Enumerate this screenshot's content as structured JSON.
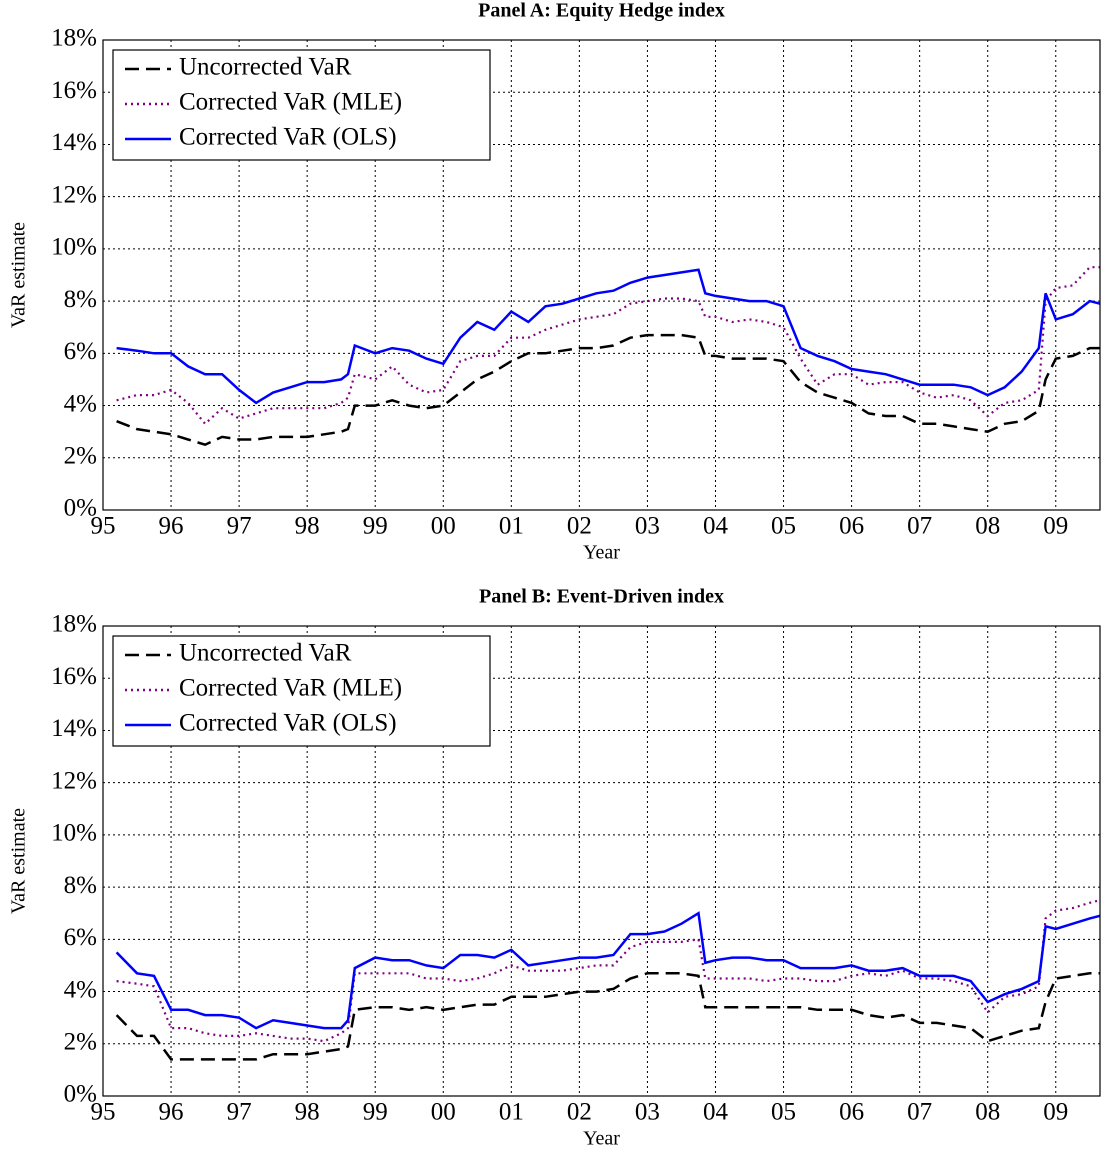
{
  "chart_data": [
    {
      "type": "line",
      "title": "Panel A: Equity Hedge index",
      "xlabel": "Year",
      "ylabel": "VaR estimate",
      "x": [
        1995.2,
        1995.5,
        1995.75,
        1996.0,
        1996.25,
        1996.5,
        1996.75,
        1997.0,
        1997.25,
        1997.5,
        1997.75,
        1998.0,
        1998.25,
        1998.5,
        1998.6,
        1998.7,
        1999.0,
        1999.25,
        1999.5,
        1999.75,
        2000.0,
        2000.25,
        2000.5,
        2000.75,
        2001.0,
        2001.25,
        2001.5,
        2001.75,
        2002.0,
        2002.25,
        2002.5,
        2002.75,
        2003.0,
        2003.25,
        2003.5,
        2003.75,
        2003.85,
        2004.0,
        2004.25,
        2004.5,
        2004.75,
        2005.0,
        2005.25,
        2005.5,
        2005.75,
        2006.0,
        2006.25,
        2006.5,
        2006.75,
        2007.0,
        2007.25,
        2007.5,
        2007.75,
        2008.0,
        2008.25,
        2008.5,
        2008.75,
        2008.85,
        2009.0,
        2009.25,
        2009.5,
        2009.65
      ],
      "series": [
        {
          "name": "Uncorrected VaR",
          "color": "#000000",
          "linestyle": "dashed",
          "values": [
            3.4,
            3.1,
            3.0,
            2.9,
            2.7,
            2.5,
            2.8,
            2.7,
            2.7,
            2.8,
            2.8,
            2.8,
            2.9,
            3.0,
            3.1,
            4.0,
            4.0,
            4.2,
            4.0,
            3.9,
            4.0,
            4.5,
            5.0,
            5.3,
            5.7,
            6.0,
            6.0,
            6.1,
            6.2,
            6.2,
            6.3,
            6.6,
            6.7,
            6.7,
            6.7,
            6.6,
            5.9,
            5.9,
            5.8,
            5.8,
            5.8,
            5.7,
            4.9,
            4.5,
            4.3,
            4.1,
            3.7,
            3.6,
            3.6,
            3.3,
            3.3,
            3.2,
            3.1,
            3.0,
            3.3,
            3.4,
            3.8,
            5.0,
            5.8,
            5.9,
            6.2,
            6.2
          ]
        },
        {
          "name": "Corrected VaR (MLE)",
          "color": "#800080",
          "linestyle": "dotted",
          "values": [
            4.2,
            4.4,
            4.4,
            4.6,
            4.1,
            3.3,
            3.9,
            3.5,
            3.7,
            3.9,
            3.9,
            3.9,
            3.9,
            4.1,
            4.3,
            5.2,
            5.0,
            5.5,
            4.8,
            4.5,
            4.6,
            5.7,
            5.9,
            5.9,
            6.6,
            6.6,
            6.9,
            7.1,
            7.3,
            7.4,
            7.5,
            7.9,
            8.0,
            8.1,
            8.1,
            8.0,
            7.4,
            7.4,
            7.2,
            7.3,
            7.2,
            7.0,
            5.8,
            4.8,
            5.2,
            5.2,
            4.8,
            4.9,
            4.9,
            4.5,
            4.3,
            4.4,
            4.2,
            3.6,
            4.1,
            4.2,
            4.6,
            8.0,
            8.5,
            8.6,
            9.3,
            9.3
          ]
        },
        {
          "name": "Corrected VaR (OLS)",
          "color": "#0000ff",
          "linestyle": "solid",
          "values": [
            6.2,
            6.1,
            6.0,
            6.0,
            5.5,
            5.2,
            5.2,
            4.6,
            4.1,
            4.5,
            4.7,
            4.9,
            4.9,
            5.0,
            5.2,
            6.3,
            6.0,
            6.2,
            6.1,
            5.8,
            5.6,
            6.6,
            7.2,
            6.9,
            7.6,
            7.2,
            7.8,
            7.9,
            8.1,
            8.3,
            8.4,
            8.7,
            8.9,
            9.0,
            9.1,
            9.2,
            8.3,
            8.2,
            8.1,
            8.0,
            8.0,
            7.8,
            6.2,
            5.9,
            5.7,
            5.4,
            5.3,
            5.2,
            5.0,
            4.8,
            4.8,
            4.8,
            4.7,
            4.4,
            4.7,
            5.3,
            6.2,
            8.3,
            7.3,
            7.5,
            8.0,
            7.9
          ]
        }
      ],
      "xlim": [
        1995,
        2009.65
      ],
      "ylim": [
        0,
        18
      ],
      "xticks": [
        {
          "value": 1995,
          "label": "95"
        },
        {
          "value": 1996,
          "label": "96"
        },
        {
          "value": 1997,
          "label": "97"
        },
        {
          "value": 1998,
          "label": "98"
        },
        {
          "value": 1999,
          "label": "99"
        },
        {
          "value": 2000,
          "label": "00"
        },
        {
          "value": 2001,
          "label": "01"
        },
        {
          "value": 2002,
          "label": "02"
        },
        {
          "value": 2003,
          "label": "03"
        },
        {
          "value": 2004,
          "label": "04"
        },
        {
          "value": 2005,
          "label": "05"
        },
        {
          "value": 2006,
          "label": "06"
        },
        {
          "value": 2007,
          "label": "07"
        },
        {
          "value": 2008,
          "label": "08"
        },
        {
          "value": 2009,
          "label": "09"
        }
      ],
      "yticks": [
        {
          "value": 0,
          "label": "0%"
        },
        {
          "value": 2,
          "label": "2%"
        },
        {
          "value": 4,
          "label": "4%"
        },
        {
          "value": 6,
          "label": "6%"
        },
        {
          "value": 8,
          "label": "8%"
        },
        {
          "value": 10,
          "label": "10%"
        },
        {
          "value": 12,
          "label": "12%"
        },
        {
          "value": 14,
          "label": "14%"
        },
        {
          "value": 16,
          "label": "16%"
        },
        {
          "value": 18,
          "label": "18%"
        }
      ],
      "grid": true,
      "legend": "upper left"
    },
    {
      "type": "line",
      "title": "Panel B: Event-Driven index",
      "xlabel": "Year",
      "ylabel": "VaR estimate",
      "x": [
        1995.2,
        1995.5,
        1995.75,
        1996.0,
        1996.25,
        1996.5,
        1996.75,
        1997.0,
        1997.25,
        1997.5,
        1997.75,
        1998.0,
        1998.25,
        1998.5,
        1998.6,
        1998.7,
        1999.0,
        1999.25,
        1999.5,
        1999.75,
        2000.0,
        2000.25,
        2000.5,
        2000.75,
        2001.0,
        2001.25,
        2001.5,
        2001.75,
        2002.0,
        2002.25,
        2002.5,
        2002.75,
        2003.0,
        2003.25,
        2003.5,
        2003.75,
        2003.85,
        2004.0,
        2004.25,
        2004.5,
        2004.75,
        2005.0,
        2005.25,
        2005.5,
        2005.75,
        2006.0,
        2006.25,
        2006.5,
        2006.75,
        2007.0,
        2007.25,
        2007.5,
        2007.75,
        2008.0,
        2008.25,
        2008.5,
        2008.75,
        2008.85,
        2009.0,
        2009.25,
        2009.5,
        2009.65
      ],
      "series": [
        {
          "name": "Uncorrected VaR",
          "color": "#000000",
          "linestyle": "dashed",
          "values": [
            3.1,
            2.3,
            2.3,
            1.4,
            1.4,
            1.4,
            1.4,
            1.4,
            1.4,
            1.6,
            1.6,
            1.6,
            1.7,
            1.8,
            1.9,
            3.3,
            3.4,
            3.4,
            3.3,
            3.4,
            3.3,
            3.4,
            3.5,
            3.5,
            3.8,
            3.8,
            3.8,
            3.9,
            4.0,
            4.0,
            4.1,
            4.5,
            4.7,
            4.7,
            4.7,
            4.6,
            3.4,
            3.4,
            3.4,
            3.4,
            3.4,
            3.4,
            3.4,
            3.3,
            3.3,
            3.3,
            3.1,
            3.0,
            3.1,
            2.8,
            2.8,
            2.7,
            2.6,
            2.1,
            2.3,
            2.5,
            2.6,
            3.6,
            4.5,
            4.6,
            4.7,
            4.7
          ]
        },
        {
          "name": "Corrected VaR (MLE)",
          "color": "#800080",
          "linestyle": "dotted",
          "values": [
            4.4,
            4.3,
            4.2,
            2.6,
            2.6,
            2.4,
            2.3,
            2.3,
            2.4,
            2.3,
            2.2,
            2.2,
            2.1,
            2.4,
            2.6,
            4.7,
            4.7,
            4.7,
            4.7,
            4.5,
            4.5,
            4.4,
            4.5,
            4.7,
            5.0,
            4.8,
            4.8,
            4.8,
            4.9,
            5.0,
            5.0,
            5.7,
            5.9,
            5.9,
            5.9,
            6.0,
            4.5,
            4.5,
            4.5,
            4.5,
            4.4,
            4.5,
            4.5,
            4.4,
            4.4,
            4.6,
            4.7,
            4.6,
            4.8,
            4.5,
            4.5,
            4.4,
            4.2,
            3.2,
            3.8,
            3.9,
            4.2,
            6.8,
            7.1,
            7.2,
            7.4,
            7.5
          ]
        },
        {
          "name": "Corrected VaR (OLS)",
          "color": "#0000ff",
          "linestyle": "solid",
          "values": [
            5.5,
            4.7,
            4.6,
            3.3,
            3.3,
            3.1,
            3.1,
            3.0,
            2.6,
            2.9,
            2.8,
            2.7,
            2.6,
            2.6,
            2.9,
            4.9,
            5.3,
            5.2,
            5.2,
            5.0,
            4.9,
            5.4,
            5.4,
            5.3,
            5.6,
            5.0,
            5.1,
            5.2,
            5.3,
            5.3,
            5.4,
            6.2,
            6.2,
            6.3,
            6.6,
            7.0,
            5.1,
            5.2,
            5.3,
            5.3,
            5.2,
            5.2,
            4.9,
            4.9,
            4.9,
            5.0,
            4.8,
            4.8,
            4.9,
            4.6,
            4.6,
            4.6,
            4.4,
            3.6,
            3.9,
            4.1,
            4.4,
            6.5,
            6.4,
            6.6,
            6.8,
            6.9
          ]
        }
      ],
      "xlim": [
        1995,
        2009.65
      ],
      "ylim": [
        0,
        18
      ],
      "xticks": [
        {
          "value": 1995,
          "label": "95"
        },
        {
          "value": 1996,
          "label": "96"
        },
        {
          "value": 1997,
          "label": "97"
        },
        {
          "value": 1998,
          "label": "98"
        },
        {
          "value": 1999,
          "label": "99"
        },
        {
          "value": 2000,
          "label": "00"
        },
        {
          "value": 2001,
          "label": "01"
        },
        {
          "value": 2002,
          "label": "02"
        },
        {
          "value": 2003,
          "label": "03"
        },
        {
          "value": 2004,
          "label": "04"
        },
        {
          "value": 2005,
          "label": "05"
        },
        {
          "value": 2006,
          "label": "06"
        },
        {
          "value": 2007,
          "label": "07"
        },
        {
          "value": 2008,
          "label": "08"
        },
        {
          "value": 2009,
          "label": "09"
        }
      ],
      "yticks": [
        {
          "value": 0,
          "label": "0%"
        },
        {
          "value": 2,
          "label": "2%"
        },
        {
          "value": 4,
          "label": "4%"
        },
        {
          "value": 6,
          "label": "6%"
        },
        {
          "value": 8,
          "label": "8%"
        },
        {
          "value": 10,
          "label": "10%"
        },
        {
          "value": 12,
          "label": "12%"
        },
        {
          "value": 14,
          "label": "14%"
        },
        {
          "value": 16,
          "label": "16%"
        },
        {
          "value": 18,
          "label": "18%"
        }
      ],
      "grid": true,
      "legend": "upper left"
    }
  ]
}
